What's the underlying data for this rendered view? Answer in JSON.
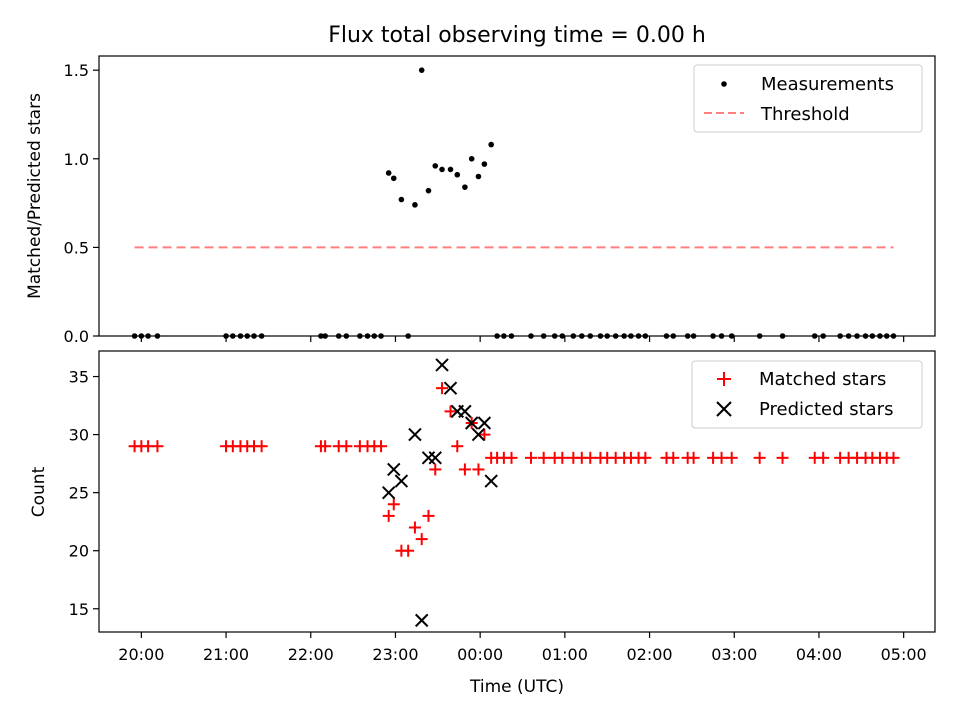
{
  "chart_data": [
    {
      "type": "scatter",
      "title": "Flux total observing time = 0.00 h",
      "ylabel": "Matched/Predicted stars",
      "ylim": [
        0,
        1.58
      ],
      "yticks": [
        0.0,
        0.5,
        1.0,
        1.5
      ],
      "ytick_labels": [
        "0.0",
        "0.5",
        "1.0",
        "1.5"
      ],
      "legend_position": "upper-right",
      "series": [
        {
          "name": "Measurements",
          "marker": "dot",
          "color": "#000000",
          "x": [
            19.92,
            20.0,
            20.08,
            20.19,
            21.0,
            21.08,
            21.17,
            21.25,
            21.33,
            21.42,
            22.12,
            22.17,
            22.33,
            22.42,
            22.58,
            22.67,
            22.75,
            22.83,
            22.92,
            22.98,
            23.07,
            23.15,
            23.23,
            23.31,
            23.39,
            23.47,
            23.55,
            23.65,
            23.73,
            23.82,
            23.9,
            23.98,
            24.05,
            24.13,
            24.2,
            24.28,
            24.37,
            24.6,
            24.75,
            24.88,
            24.97,
            25.1,
            25.2,
            25.3,
            25.42,
            25.5,
            25.6,
            25.7,
            25.78,
            25.87,
            25.95,
            26.2,
            26.28,
            26.45,
            26.52,
            26.75,
            26.85,
            26.97,
            27.3,
            27.57,
            27.95,
            28.05,
            28.25,
            28.35,
            28.45,
            28.55,
            28.63,
            28.72,
            28.8,
            28.88
          ],
          "y": [
            0,
            0,
            0,
            0,
            0,
            0,
            0,
            0,
            0,
            0,
            0,
            0,
            0,
            0,
            0,
            0,
            0,
            0,
            0.92,
            0.89,
            0.77,
            0,
            0.74,
            1.5,
            0.82,
            0.96,
            0.94,
            0.94,
            0.91,
            0.84,
            1.0,
            0.9,
            0.97,
            1.08,
            0,
            0,
            0,
            0,
            0,
            0,
            0,
            0,
            0,
            0,
            0,
            0,
            0,
            0,
            0,
            0,
            0,
            0,
            0,
            0,
            0,
            0,
            0,
            0,
            0,
            0,
            0,
            0,
            0,
            0,
            0,
            0,
            0,
            0,
            0,
            0
          ]
        },
        {
          "name": "Threshold",
          "marker": "dashed-line",
          "color": "#ff7f7f",
          "x": [
            19.92,
            28.88
          ],
          "y": [
            0.5,
            0.5
          ]
        }
      ]
    },
    {
      "type": "scatter",
      "xlabel": "Time (UTC)",
      "ylabel": "Count",
      "ylim": [
        13,
        37.2
      ],
      "yticks": [
        15,
        20,
        25,
        30,
        35
      ],
      "ytick_labels": [
        "15",
        "20",
        "25",
        "30",
        "35"
      ],
      "xlim": [
        19.5,
        29.37
      ],
      "xticks": [
        20,
        21,
        22,
        23,
        24,
        25,
        26,
        27,
        28,
        29
      ],
      "xtick_labels": [
        "20:00",
        "21:00",
        "22:00",
        "23:00",
        "00:00",
        "01:00",
        "02:00",
        "03:00",
        "04:00",
        "05:00"
      ],
      "legend_position": "upper-right",
      "series": [
        {
          "name": "Matched stars",
          "marker": "plus",
          "color": "#ff0000",
          "x": [
            19.92,
            20.0,
            20.08,
            20.19,
            21.0,
            21.08,
            21.17,
            21.25,
            21.33,
            21.42,
            22.12,
            22.17,
            22.33,
            22.42,
            22.58,
            22.67,
            22.75,
            22.83,
            22.92,
            22.98,
            23.07,
            23.15,
            23.23,
            23.31,
            23.39,
            23.47,
            23.55,
            23.65,
            23.73,
            23.82,
            23.9,
            23.98,
            24.05,
            24.13,
            24.2,
            24.28,
            24.37,
            24.6,
            24.75,
            24.88,
            24.97,
            25.1,
            25.2,
            25.3,
            25.42,
            25.5,
            25.6,
            25.7,
            25.78,
            25.87,
            25.95,
            26.2,
            26.28,
            26.45,
            26.52,
            26.75,
            26.85,
            26.97,
            27.3,
            27.57,
            27.95,
            28.05,
            28.25,
            28.35,
            28.45,
            28.55,
            28.63,
            28.72,
            28.8,
            28.88
          ],
          "y": [
            29,
            29,
            29,
            29,
            29,
            29,
            29,
            29,
            29,
            29,
            29,
            29,
            29,
            29,
            29,
            29,
            29,
            29,
            23,
            24,
            20,
            20,
            22,
            21,
            23,
            27,
            34,
            32,
            29,
            27,
            31,
            27,
            30,
            28,
            28,
            28,
            28,
            28,
            28,
            28,
            28,
            28,
            28,
            28,
            28,
            28,
            28,
            28,
            28,
            28,
            28,
            28,
            28,
            28,
            28,
            28,
            28,
            28,
            28,
            28,
            28,
            28,
            28,
            28,
            28,
            28,
            28,
            28,
            28,
            28
          ]
        },
        {
          "name": "Predicted stars",
          "marker": "x",
          "color": "#000000",
          "x": [
            22.92,
            22.98,
            23.07,
            23.23,
            23.31,
            23.39,
            23.47,
            23.55,
            23.65,
            23.73,
            23.82,
            23.9,
            23.98,
            24.05,
            24.13
          ],
          "y": [
            25,
            27,
            26,
            30,
            14,
            28,
            28,
            36,
            34,
            32,
            32,
            31,
            30,
            31,
            26
          ]
        }
      ]
    }
  ]
}
